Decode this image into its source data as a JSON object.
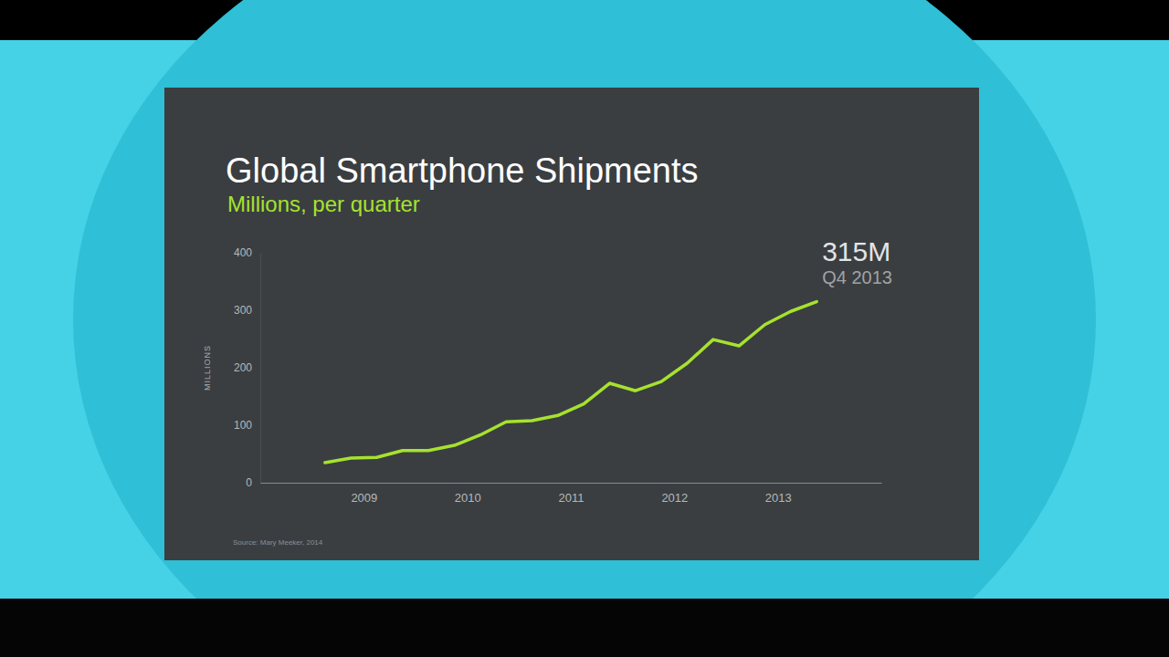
{
  "chart_data": {
    "type": "line",
    "title": "Global Smartphone Shipments",
    "subtitle": "Millions, per quarter",
    "ylabel": "MILLIONS",
    "source": "Source: Mary Meeker, 2014",
    "x": [
      2009.125,
      2009.375,
      2009.625,
      2009.875,
      2010.125,
      2010.375,
      2010.625,
      2010.875,
      2011.125,
      2011.375,
      2011.625,
      2011.875,
      2012.125,
      2012.375,
      2012.625,
      2012.875,
      2013.125,
      2013.375,
      2013.625,
      2013.875
    ],
    "values": [
      35,
      43,
      44,
      56,
      56,
      65,
      83,
      106,
      108,
      117,
      137,
      173,
      160,
      176,
      208,
      249,
      238,
      275,
      298,
      315
    ],
    "color": "#a6e22e",
    "xlim": [
      2008.5,
      2014.5
    ],
    "xticks": [
      {
        "value": 2009.5,
        "label": "2009"
      },
      {
        "value": 2010.5,
        "label": "2010"
      },
      {
        "value": 2011.5,
        "label": "2011"
      },
      {
        "value": 2012.5,
        "label": "2012"
      },
      {
        "value": 2013.5,
        "label": "2013"
      }
    ],
    "ylim": [
      0,
      400
    ],
    "yticks": [
      0,
      100,
      200,
      300,
      400
    ],
    "grid": false,
    "annotations": [
      {
        "x": 2013.875,
        "y": 315,
        "text": "315M",
        "subtext": "Q4 2013"
      }
    ]
  }
}
